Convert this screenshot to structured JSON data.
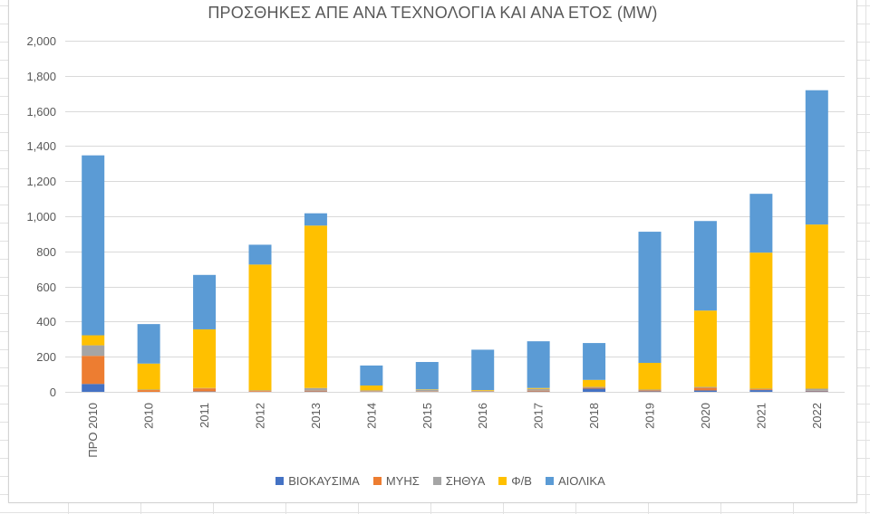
{
  "chart_data": {
    "type": "bar",
    "stacked": true,
    "title": "ΠΡΟΣΘΗΚΕΣ ΑΠΕ ΑΝΑ ΤΕΧΝΟΛΟΓΙΑ ΚΑΙ ΑΝΑ ΕΤΟΣ (MW)",
    "xlabel": "",
    "ylabel": "",
    "ylim": [
      0,
      2000
    ],
    "y_ticks": [
      "0",
      "200",
      "400",
      "600",
      "800",
      "1,000",
      "1,200",
      "1,400",
      "1,600",
      "1,800",
      "2,000"
    ],
    "grid": true,
    "legend_position": "bottom",
    "categories": [
      "ΠΡΟ 2010",
      "2010",
      "2011",
      "2012",
      "2013",
      "2014",
      "2015",
      "2016",
      "2017",
      "2018",
      "2019",
      "2020",
      "2021",
      "2022"
    ],
    "series": [
      {
        "name": "ΒΙΟΚΑΥΣΙΜΑ",
        "color": "#4472C4",
        "values": [
          45,
          0,
          2,
          1,
          2,
          1,
          1,
          1,
          2,
          18,
          3,
          8,
          10,
          3
        ]
      },
      {
        "name": "ΜΥΗΣ",
        "color": "#ED7D31",
        "values": [
          160,
          10,
          18,
          4,
          5,
          2,
          2,
          2,
          5,
          5,
          5,
          15,
          5,
          3
        ]
      },
      {
        "name": "ΣΗΘΥΑ",
        "color": "#A5A5A5",
        "values": [
          60,
          3,
          2,
          3,
          15,
          5,
          8,
          3,
          10,
          5,
          5,
          5,
          3,
          12
        ]
      },
      {
        "name": "Φ/Β",
        "color": "#FFC000",
        "values": [
          57,
          148,
          334,
          717,
          925,
          28,
          3,
          4,
          5,
          40,
          152,
          435,
          775,
          935
        ]
      },
      {
        "name": "ΑΙΟΛΙΚΑ",
        "color": "#5B9BD5",
        "values": [
          1025,
          225,
          310,
          113,
          70,
          114,
          156,
          230,
          266,
          210,
          747,
          510,
          335,
          765
        ]
      }
    ]
  }
}
